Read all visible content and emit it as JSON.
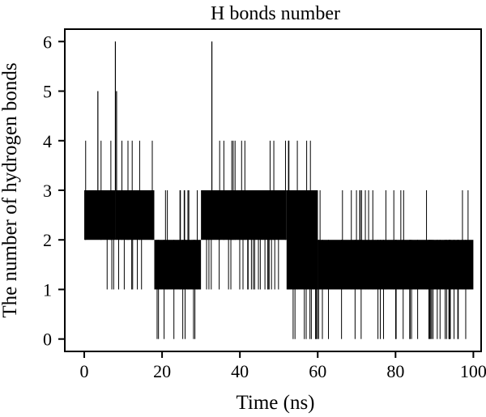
{
  "chart_data": {
    "type": "line",
    "title": "H bonds number",
    "xlabel": "Time (ns)",
    "ylabel": "The number of hydrogen bonds",
    "xlim": [
      -5,
      102
    ],
    "ylim": [
      -0.25,
      6.25
    ],
    "xticks": [
      0,
      20,
      40,
      60,
      80,
      100
    ],
    "yticks": [
      0,
      1,
      2,
      3,
      4,
      5,
      6
    ],
    "grid": false,
    "series": [
      {
        "description": "Dense per-frame H-bond count trace (0-100 ns), line color black",
        "color": "#000000",
        "segments": [
          {
            "x_range": [
              0,
              8
            ],
            "baseline": [
              2,
              3
            ]
          },
          {
            "x_range": [
              8,
              18
            ],
            "baseline": [
              2,
              3
            ]
          },
          {
            "x_range": [
              18,
              30
            ],
            "baseline": [
              1,
              2
            ]
          },
          {
            "x_range": [
              30,
              52
            ],
            "baseline": [
              2,
              3
            ]
          },
          {
            "x_range": [
              52,
              60
            ],
            "baseline": [
              1,
              3
            ]
          },
          {
            "x_range": [
              60,
              100
            ],
            "baseline": [
              1,
              2
            ]
          }
        ],
        "spikes": [
          {
            "x": 3.5,
            "y": 5
          },
          {
            "x": 8.0,
            "y": 6
          },
          {
            "x": 8.3,
            "y": 5
          },
          {
            "x": 32.8,
            "y": 6
          }
        ]
      }
    ]
  }
}
